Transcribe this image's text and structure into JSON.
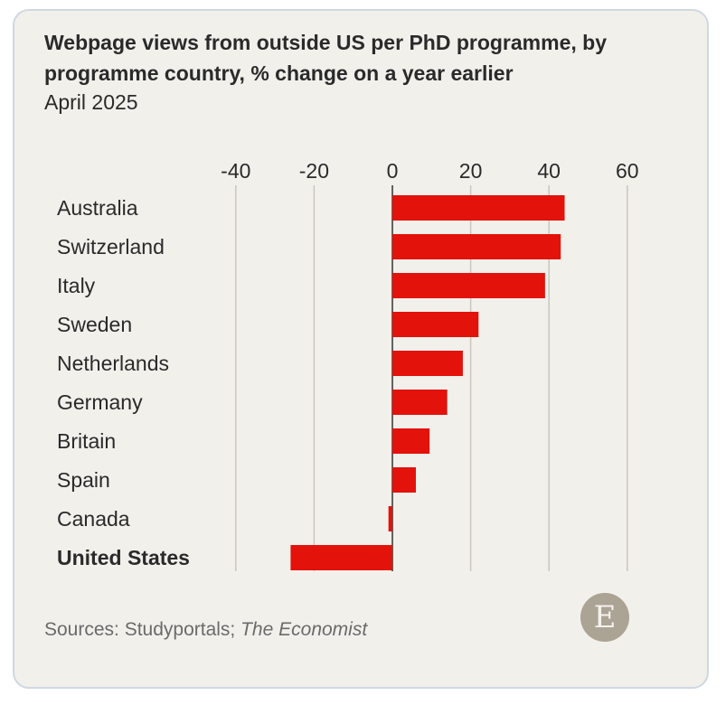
{
  "header": {
    "title": "Webpage views from outside US per PhD programme, by programme country, % change on a year earlier",
    "subtitle": "April 2025"
  },
  "footer": {
    "source_prefix": "Sources: Studyportals; ",
    "source_italic": "The Economist",
    "logo_letter": "E"
  },
  "colors": {
    "bar": "#e3120b",
    "grid": "#c9c6bd",
    "label": "#2a2a2a",
    "axis": "#333333"
  },
  "chart_data": {
    "type": "bar",
    "orientation": "horizontal",
    "title": "Webpage views from outside US per PhD programme, by programme country, % change on a year earlier",
    "subtitle": "April 2025",
    "categories": [
      "Australia",
      "Switzerland",
      "Italy",
      "Sweden",
      "Netherlands",
      "Germany",
      "Britain",
      "Spain",
      "Canada",
      "United States"
    ],
    "values": [
      44,
      43,
      39,
      22,
      18,
      14,
      9.5,
      6,
      -1,
      -26
    ],
    "highlighted_category": "United States",
    "xlim": [
      -40,
      60
    ],
    "xticks": [
      -40,
      -20,
      0,
      20,
      40,
      60
    ],
    "xlabel": "",
    "ylabel": "",
    "grid": true,
    "axis_position": "top"
  }
}
